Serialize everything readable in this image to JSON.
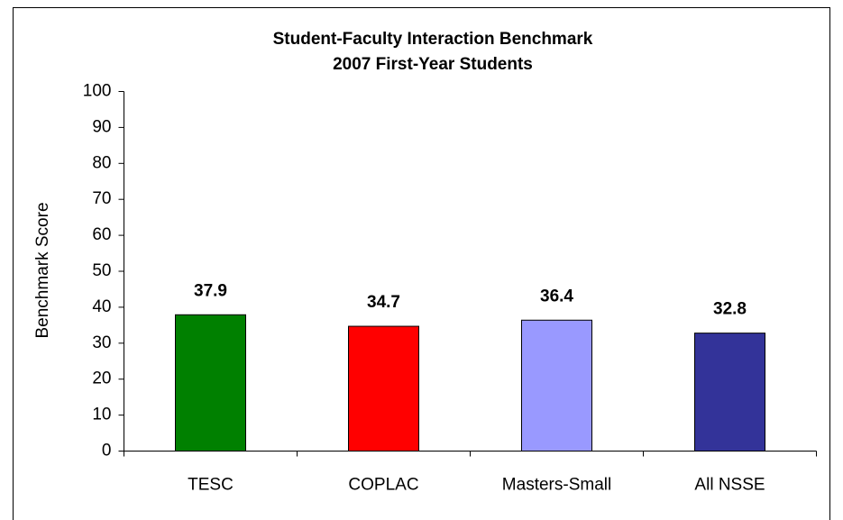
{
  "chart_data": {
    "type": "bar",
    "title": "Student-Faculty Interaction Benchmark",
    "subtitle": "2007 First-Year Students",
    "y_label": "Benchmark Score",
    "categories": [
      "TESC",
      "COPLAC",
      "Masters-Small",
      "All NSSE"
    ],
    "values": [
      37.9,
      34.7,
      36.4,
      32.8
    ],
    "colors": [
      "#008000",
      "#ff0000",
      "#9999ff",
      "#333399"
    ],
    "ylim": [
      0,
      100
    ],
    "yticks": [
      0,
      10,
      20,
      30,
      40,
      50,
      60,
      70,
      80,
      90,
      100
    ],
    "grid": false
  }
}
